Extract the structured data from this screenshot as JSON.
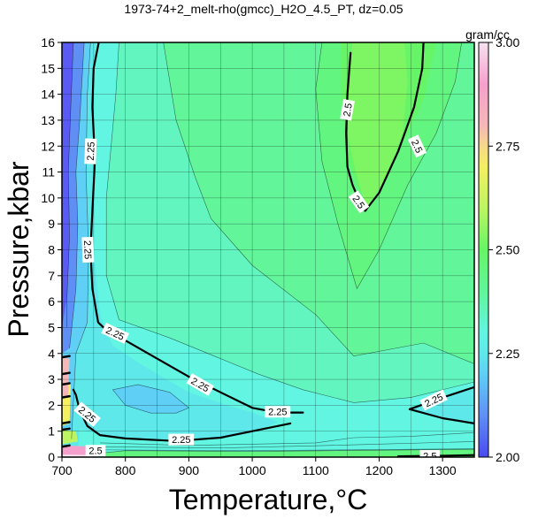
{
  "chart_data": {
    "type": "contour",
    "title": "1973-74+2_melt-rho(gmcc)_H2O_4.5_PT, dz=0.05",
    "xlabel": "Temperature,°C",
    "ylabel": "Pressure,kbar",
    "xlim": [
      700,
      1350
    ],
    "ylim": [
      0,
      16
    ],
    "x_ticks": [
      "700",
      "800",
      "900",
      "1000",
      "1100",
      "1200",
      "1300"
    ],
    "y_ticks": [
      "0",
      "1",
      "2",
      "3",
      "4",
      "5",
      "6",
      "7",
      "8",
      "9",
      "10",
      "11",
      "12",
      "13",
      "14",
      "15",
      "16"
    ],
    "grid": true,
    "colorbar": {
      "unit": "gram/cc",
      "range": [
        2.0,
        3.0
      ],
      "ticks": [
        "2.00",
        "2.25",
        "2.50",
        "2.75",
        "3.00"
      ],
      "colors": {
        "c200": "#5a5af5",
        "c210": "#5f8ff5",
        "c220": "#5fcff5",
        "c225": "#5fe8ea",
        "c230": "#62f5e2",
        "c235": "#62f5c0",
        "c240": "#62f59a",
        "c245": "#62f57f",
        "c250": "#66f566",
        "c255": "#7ef562",
        "c260": "#bdf562",
        "c270": "#f5ef62",
        "c275": "#f5d98b",
        "c280": "#f5b8b8",
        "c290": "#f5a0cc",
        "c300": "#f7e2f0"
      }
    },
    "contour_labels": [
      {
        "text": "2.25",
        "x": 745,
        "y": 11.8,
        "angle": -88
      },
      {
        "text": "2.25",
        "x": 741,
        "y": 8.0,
        "angle": 88
      },
      {
        "text": "2.25",
        "x": 784,
        "y": 4.78,
        "angle": 25
      },
      {
        "text": "2.25",
        "x": 918,
        "y": 2.8,
        "angle": 30
      },
      {
        "text": "2.25",
        "x": 1040,
        "y": 1.75,
        "angle": 0
      },
      {
        "text": "2.25",
        "x": 740,
        "y": 1.65,
        "angle": 40
      },
      {
        "text": "2.25",
        "x": 888,
        "y": 0.68,
        "angle": 0
      },
      {
        "text": "2.25",
        "x": 1286,
        "y": 2.2,
        "angle": -25
      },
      {
        "text": "2.5",
        "x": 1150,
        "y": 13.4,
        "angle": -80
      },
      {
        "text": "2.5",
        "x": 1260,
        "y": 12.0,
        "angle": 65
      },
      {
        "text": "2.5",
        "x": 1168,
        "y": 9.85,
        "angle": 55
      },
      {
        "text": "2.5",
        "x": 753,
        "y": 0.25,
        "angle": 0
      },
      {
        "text": "2.5",
        "x": 1280,
        "y": 0.05,
        "angle": 0
      }
    ]
  }
}
